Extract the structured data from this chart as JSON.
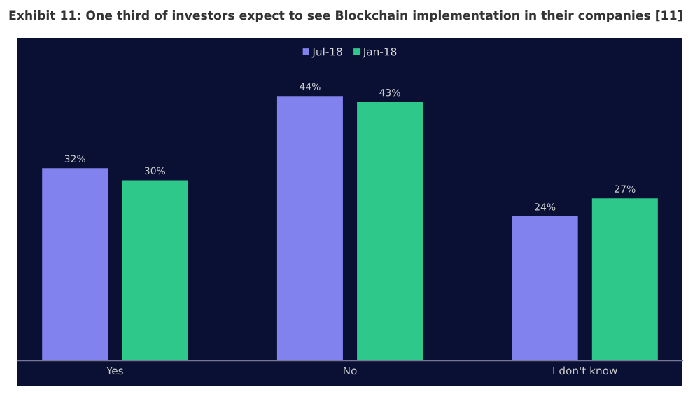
{
  "chart_data": {
    "type": "bar",
    "title": "Exhibit 11: One third of investors expect to see Blockchain implementation in their companies [11]",
    "categories": [
      "Yes",
      "No",
      "I don't know"
    ],
    "series": [
      {
        "name": "Jul-18",
        "color": "#8282ee",
        "values": [
          32,
          44,
          24
        ],
        "value_labels": [
          "32%",
          "44%",
          "24%"
        ]
      },
      {
        "name": "Jan-18",
        "color": "#2ec98a",
        "values": [
          30,
          43,
          27
        ],
        "value_labels": [
          "30%",
          "43%",
          "27%"
        ]
      }
    ],
    "legend": "top",
    "grid": false
  }
}
